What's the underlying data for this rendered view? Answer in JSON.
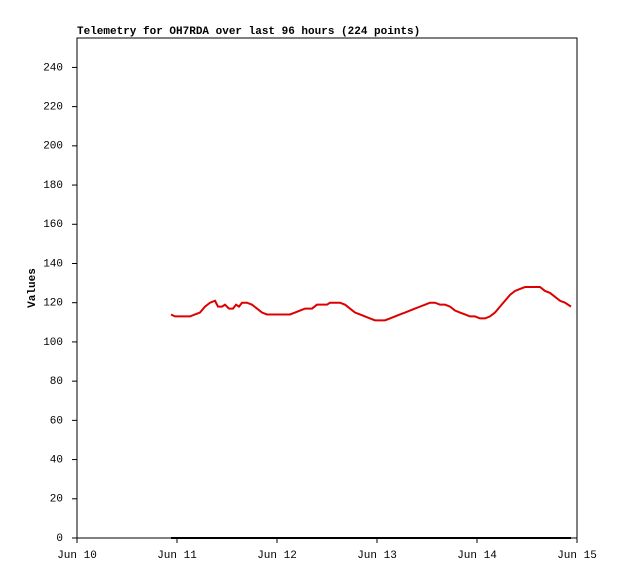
{
  "chart_data": {
    "type": "line",
    "title": "Telemetry for OH7RDA over last 96 hours (224 points)",
    "y_label": "Values",
    "xlim": [
      10,
      15
    ],
    "xticks": [
      {
        "value": 10,
        "label": "Jun 10"
      },
      {
        "value": 11,
        "label": "Jun 11"
      },
      {
        "value": 12,
        "label": "Jun 12"
      },
      {
        "value": 13,
        "label": "Jun 13"
      },
      {
        "value": 14,
        "label": "Jun 14"
      },
      {
        "value": 15,
        "label": "Jun 15"
      }
    ],
    "ylim": [
      0,
      255
    ],
    "yticks": [
      0,
      20,
      40,
      60,
      80,
      100,
      120,
      140,
      160,
      180,
      200,
      220,
      240
    ],
    "grid": false,
    "series": [
      {
        "color": "#dd0000",
        "x": [
          10.94,
          10.98,
          11.03,
          11.13,
          11.18,
          11.23,
          11.28,
          11.33,
          11.38,
          11.41,
          11.45,
          11.48,
          11.52,
          11.56,
          11.59,
          11.62,
          11.65,
          11.7,
          11.75,
          11.8,
          11.85,
          11.9,
          11.98,
          12.08,
          12.13,
          12.18,
          12.23,
          12.28,
          12.35,
          12.4,
          12.45,
          12.5,
          12.53,
          12.57,
          12.63,
          12.68,
          12.73,
          12.78,
          12.83,
          12.88,
          12.93,
          12.98,
          13.08,
          13.13,
          13.18,
          13.23,
          13.28,
          13.33,
          13.38,
          13.43,
          13.48,
          13.53,
          13.58,
          13.63,
          13.68,
          13.73,
          13.78,
          13.83,
          13.88,
          13.93,
          13.98,
          14.03,
          14.08,
          14.13,
          14.18,
          14.23,
          14.28,
          14.33,
          14.38,
          14.43,
          14.48,
          14.58,
          14.63,
          14.68,
          14.73,
          14.78,
          14.83,
          14.88,
          14.94
        ],
        "values": [
          114,
          113,
          113,
          113,
          114,
          115,
          118,
          120,
          121,
          118,
          118,
          119,
          117,
          117,
          119,
          118,
          120,
          120,
          119,
          117,
          115,
          114,
          114,
          114,
          114,
          115,
          116,
          117,
          117,
          119,
          119,
          119,
          120,
          120,
          120,
          119,
          117,
          115,
          114,
          113,
          112,
          111,
          111,
          112,
          113,
          114,
          115,
          116,
          117,
          118,
          119,
          120,
          120,
          119,
          119,
          118,
          116,
          115,
          114,
          113,
          113,
          112,
          112,
          113,
          115,
          118,
          121,
          124,
          126,
          127,
          128,
          128,
          128,
          126,
          125,
          123,
          121,
          120,
          118
        ]
      },
      {
        "color": "#000000",
        "x": [
          10.94,
          14.94
        ],
        "values": [
          0,
          0
        ]
      }
    ]
  }
}
